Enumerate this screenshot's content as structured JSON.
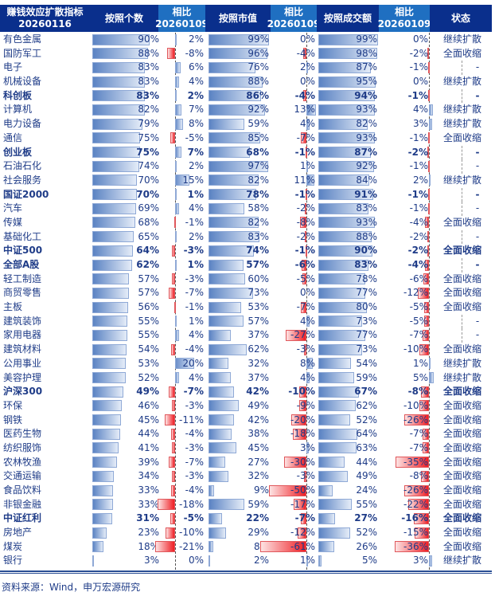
{
  "header": {
    "col_name_line1": "赚钱效应扩散指标",
    "col_name_line2": "20260116",
    "col_count": "按照个数",
    "col_cmp1_line1": "相比",
    "col_cmp1_line2": "20260109",
    "col_mktval": "按照市值",
    "col_cmp2_line1": "相比",
    "col_cmp2_line2": "20260109",
    "col_amount": "按照成交额",
    "col_cmp3_line1": "相比",
    "col_cmp3_line2": "20260109",
    "col_status": "状态"
  },
  "colors": {
    "header_dark": "#0a2f8c",
    "header_light": "#1f6fc1",
    "text": "#1f3c88",
    "positive_bar": "#5b83c3",
    "negative_bar": "#ef1e24"
  },
  "chart_data": {
    "type": "table",
    "title": "赚钱效应扩散指标 20260116",
    "columns": [
      "名称",
      "按照个数",
      "相比20260109",
      "按照市值",
      "相比20260109",
      "按照成交额",
      "相比20260109",
      "状态"
    ],
    "rows": [
      {
        "name": "有色金属",
        "bold": false,
        "count": 90,
        "count_chg": 2,
        "mktval": 99,
        "mktval_chg": 0,
        "amount": 99,
        "amount_chg": 0,
        "status": "继续扩散"
      },
      {
        "name": "国防军工",
        "bold": false,
        "count": 88,
        "count_chg": -8,
        "mktval": 96,
        "mktval_chg": -4,
        "amount": 98,
        "amount_chg": -2,
        "status": "全面收缩"
      },
      {
        "name": "电子",
        "bold": false,
        "count": 83,
        "count_chg": 6,
        "mktval": 76,
        "mktval_chg": 2,
        "amount": 87,
        "amount_chg": -1,
        "status": "-"
      },
      {
        "name": "机械设备",
        "bold": false,
        "count": 83,
        "count_chg": 4,
        "mktval": 88,
        "mktval_chg": 0,
        "amount": 95,
        "amount_chg": 0,
        "status": "继续扩散"
      },
      {
        "name": "科创板",
        "bold": true,
        "count": 83,
        "count_chg": 2,
        "mktval": 86,
        "mktval_chg": -4,
        "amount": 94,
        "amount_chg": -1,
        "status": "-"
      },
      {
        "name": "计算机",
        "bold": false,
        "count": 82,
        "count_chg": 7,
        "mktval": 92,
        "mktval_chg": 13,
        "amount": 93,
        "amount_chg": 4,
        "status": "继续扩散"
      },
      {
        "name": "电力设备",
        "bold": false,
        "count": 79,
        "count_chg": 8,
        "mktval": 59,
        "mktval_chg": 4,
        "amount": 82,
        "amount_chg": 3,
        "status": "继续扩散"
      },
      {
        "name": "通信",
        "bold": false,
        "count": 75,
        "count_chg": -5,
        "mktval": 85,
        "mktval_chg": -7,
        "amount": 93,
        "amount_chg": -1,
        "status": "全面收缩"
      },
      {
        "name": "创业板",
        "bold": true,
        "count": 75,
        "count_chg": 7,
        "mktval": 68,
        "mktval_chg": -1,
        "amount": 87,
        "amount_chg": -2,
        "status": "-"
      },
      {
        "name": "石油石化",
        "bold": false,
        "count": 74,
        "count_chg": 2,
        "mktval": 97,
        "mktval_chg": 1,
        "amount": 92,
        "amount_chg": -1,
        "status": "-"
      },
      {
        "name": "社会服务",
        "bold": false,
        "count": 70,
        "count_chg": 15,
        "mktval": 82,
        "mktval_chg": 11,
        "amount": 84,
        "amount_chg": 2,
        "status": "继续扩散"
      },
      {
        "name": "国证2000",
        "bold": true,
        "count": 70,
        "count_chg": 1,
        "mktval": 78,
        "mktval_chg": -1,
        "amount": 91,
        "amount_chg": -1,
        "status": "-"
      },
      {
        "name": "汽车",
        "bold": false,
        "count": 69,
        "count_chg": 4,
        "mktval": 58,
        "mktval_chg": -2,
        "amount": 83,
        "amount_chg": -1,
        "status": "-"
      },
      {
        "name": "传媒",
        "bold": false,
        "count": 68,
        "count_chg": -1,
        "mktval": 82,
        "mktval_chg": -8,
        "amount": 93,
        "amount_chg": -4,
        "status": "全面收缩"
      },
      {
        "name": "基础化工",
        "bold": false,
        "count": 65,
        "count_chg": 2,
        "mktval": 83,
        "mktval_chg": -2,
        "amount": 88,
        "amount_chg": -2,
        "status": "-"
      },
      {
        "name": "中证500",
        "bold": true,
        "count": 64,
        "count_chg": -3,
        "mktval": 74,
        "mktval_chg": -1,
        "amount": 90,
        "amount_chg": -2,
        "status": "全面收缩"
      },
      {
        "name": "全部A股",
        "bold": true,
        "count": 62,
        "count_chg": 1,
        "mktval": 57,
        "mktval_chg": -6,
        "amount": 83,
        "amount_chg": -4,
        "status": "-"
      },
      {
        "name": "轻工制造",
        "bold": false,
        "count": 57,
        "count_chg": -3,
        "mktval": 60,
        "mktval_chg": -5,
        "amount": 78,
        "amount_chg": -6,
        "status": "全面收缩"
      },
      {
        "name": "商贸零售",
        "bold": false,
        "count": 57,
        "count_chg": -7,
        "mktval": 73,
        "mktval_chg": 0,
        "amount": 77,
        "amount_chg": -12,
        "status": "全面收缩"
      },
      {
        "name": "主板",
        "bold": false,
        "count": 56,
        "count_chg": -1,
        "mktval": 53,
        "mktval_chg": -7,
        "amount": 80,
        "amount_chg": -5,
        "status": "全面收缩"
      },
      {
        "name": "建筑装饰",
        "bold": false,
        "count": 55,
        "count_chg": 1,
        "mktval": 57,
        "mktval_chg": 4,
        "amount": 73,
        "amount_chg": -5,
        "status": "-"
      },
      {
        "name": "家用电器",
        "bold": false,
        "count": 55,
        "count_chg": 4,
        "mktval": 37,
        "mktval_chg": -27,
        "amount": 77,
        "amount_chg": -7,
        "status": "-"
      },
      {
        "name": "建筑材料",
        "bold": false,
        "count": 54,
        "count_chg": -4,
        "mktval": 62,
        "mktval_chg": -3,
        "amount": 73,
        "amount_chg": -10,
        "status": "全面收缩"
      },
      {
        "name": "公用事业",
        "bold": false,
        "count": 53,
        "count_chg": 20,
        "mktval": 32,
        "mktval_chg": 8,
        "amount": 54,
        "amount_chg": 1,
        "status": "继续扩散"
      },
      {
        "name": "美容护理",
        "bold": false,
        "count": 52,
        "count_chg": 4,
        "mktval": 37,
        "mktval_chg": 4,
        "amount": 59,
        "amount_chg": 5,
        "status": "继续扩散"
      },
      {
        "name": "沪深300",
        "bold": true,
        "count": 49,
        "count_chg": -7,
        "mktval": 42,
        "mktval_chg": -10,
        "amount": 67,
        "amount_chg": -8,
        "status": "全面收缩"
      },
      {
        "name": "环保",
        "bold": false,
        "count": 46,
        "count_chg": -3,
        "mktval": 49,
        "mktval_chg": -9,
        "amount": 62,
        "amount_chg": -10,
        "status": "全面收缩"
      },
      {
        "name": "钢铁",
        "bold": false,
        "count": 45,
        "count_chg": -11,
        "mktval": 42,
        "mktval_chg": -20,
        "amount": 52,
        "amount_chg": -26,
        "status": "全面收缩"
      },
      {
        "name": "医药生物",
        "bold": false,
        "count": 44,
        "count_chg": -4,
        "mktval": 38,
        "mktval_chg": -18,
        "amount": 64,
        "amount_chg": -7,
        "status": "全面收缩"
      },
      {
        "name": "纺织服饰",
        "bold": false,
        "count": 41,
        "count_chg": -3,
        "mktval": 45,
        "mktval_chg": 3,
        "amount": 63,
        "amount_chg": -7,
        "status": "全面收缩"
      },
      {
        "name": "农林牧渔",
        "bold": false,
        "count": 39,
        "count_chg": -7,
        "mktval": 27,
        "mktval_chg": -30,
        "amount": 44,
        "amount_chg": -35,
        "status": "全面收缩"
      },
      {
        "name": "交通运输",
        "bold": false,
        "count": 34,
        "count_chg": -3,
        "mktval": 32,
        "mktval_chg": -3,
        "amount": 49,
        "amount_chg": -8,
        "status": "全面收缩"
      },
      {
        "name": "食品饮料",
        "bold": false,
        "count": 33,
        "count_chg": -4,
        "mktval": 9,
        "mktval_chg": -50,
        "amount": 24,
        "amount_chg": -26,
        "status": "全面收缩"
      },
      {
        "name": "非银金融",
        "bold": false,
        "count": 33,
        "count_chg": -18,
        "mktval": 59,
        "mktval_chg": -17,
        "amount": 55,
        "amount_chg": -22,
        "status": "全面收缩"
      },
      {
        "name": "中证红利",
        "bold": true,
        "count": 31,
        "count_chg": -5,
        "mktval": 22,
        "mktval_chg": -7,
        "amount": 27,
        "amount_chg": -16,
        "status": "全面收缩"
      },
      {
        "name": "房地产",
        "bold": false,
        "count": 23,
        "count_chg": -10,
        "mktval": 29,
        "mktval_chg": -12,
        "amount": 52,
        "amount_chg": -15,
        "status": "全面收缩"
      },
      {
        "name": "煤炭",
        "bold": false,
        "count": 18,
        "count_chg": -21,
        "mktval": 8,
        "mktval_chg": -61,
        "amount": 26,
        "amount_chg": -36,
        "status": "全面收缩"
      },
      {
        "name": "银行",
        "bold": false,
        "count": 3,
        "count_chg": 0,
        "mktval": 2,
        "mktval_chg": 1,
        "amount": 5,
        "amount_chg": 3,
        "status": "继续扩散"
      }
    ]
  },
  "footer": {
    "source": "资料来源：Wind，申万宏源研究"
  }
}
